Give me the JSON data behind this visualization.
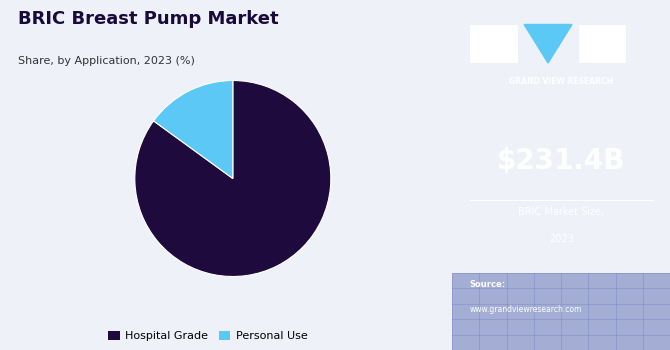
{
  "title": "BRIC Breast Pump Market",
  "subtitle": "Share, by Application, 2023 (%)",
  "pie_values": [
    85,
    15
  ],
  "pie_labels": [
    "Hospital Grade",
    "Personal Use"
  ],
  "pie_colors": [
    "#1e0a3c",
    "#5bc8f5"
  ],
  "pie_startangle": 90,
  "legend_labels": [
    "Hospital Grade",
    "Personal Use"
  ],
  "legend_colors": [
    "#1e0a3c",
    "#5bc8f5"
  ],
  "left_bg": "#eef2f8",
  "right_bg": "#3b1f6e",
  "market_size": "$231.4B",
  "market_label1": "BRIC Market Size,",
  "market_label2": "2023",
  "source_label": "Source:",
  "source_url": "www.grandviewresearch.com",
  "title_color": "#1a0a3c",
  "subtitle_color": "#333333",
  "logo_box_color": "#ffffff",
  "logo_triangle_color": "#5bc8f5",
  "grid_bottom_color": "#4a5aaa",
  "grid_line_color": "#6678cc"
}
